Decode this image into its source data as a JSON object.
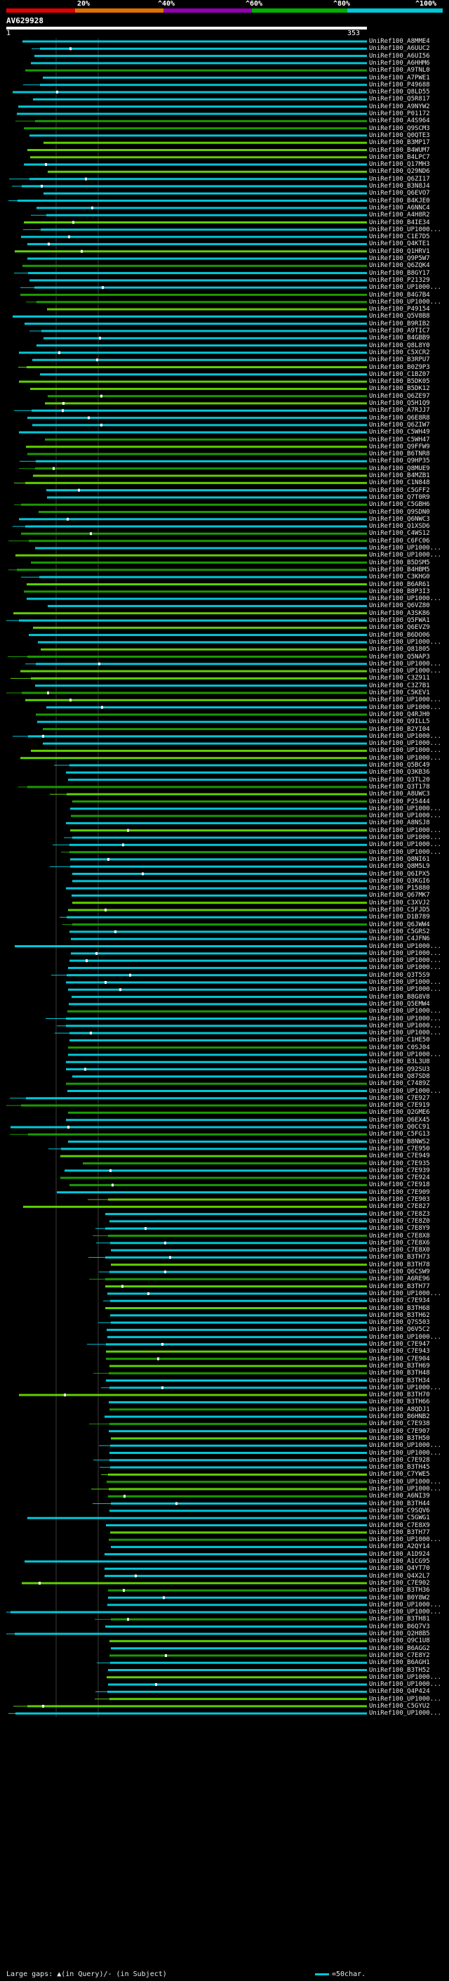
{
  "colors": {
    "background": "#000000",
    "query_line": "#ffffff",
    "hit_high": "#00c8d8",
    "hit_mid": "#1a9a00",
    "hit_mid_light": "#5fd000",
    "gap_marker": "#ffffff",
    "gridline": "#3a3a3a",
    "scale": [
      "#e00000",
      "#e07000",
      "#9000b0",
      "#00b000",
      "#00c8d8"
    ]
  },
  "scale": {
    "labels": [
      "20%",
      "^40%",
      "^60%",
      "^80%",
      "^100%"
    ]
  },
  "query": {
    "title": "AV629928",
    "start": "1",
    "end": "353"
  },
  "legend": {
    "gaps_text": "Large gaps: ▲(in Query)/- (in Subject)",
    "scale_text": "=50char."
  },
  "hits": [
    "UniRef100_A8MME4",
    "UniRef100_A6UUC2",
    "UniRef100_A6UI56",
    "UniRef100_A6HHM6",
    "UniRef100_A9TNL0",
    "UniRef100_A7PWE1",
    "UniRef100_P49688",
    "UniRef100_Q8LD55",
    "UniRef100_Q5R817",
    "UniRef100_A9NYW2",
    "UniRef100_P01172",
    "UniRef100_A4S964",
    "UniRef100_Q9SCM3",
    "UniRef100_Q0QTE3",
    "UniRef100_B3MP17",
    "UniRef100_B4WUM7",
    "UniRef100_B4LPC7",
    "UniRef100_Q17MH3",
    "UniRef100_Q29ND6",
    "UniRef100_Q6ZI17",
    "UniRef100_B3N8J4",
    "UniRef100_Q6EVO7",
    "UniRef100_B4KJE0",
    "UniRef100_A6NNC4",
    "UniRef100_A4H8R2",
    "UniRef100_B4IE34",
    "UniRef100_UP1000...",
    "UniRef100_C1E7D5",
    "UniRef100_Q4KTE1",
    "UniRef100_Q1HRV1",
    "UniRef100_Q9P5W7",
    "UniRef100_Q6ZQK4",
    "UniRef100_B8GY17",
    "UniRef100_P21329",
    "UniRef100_UP1000...",
    "UniRef100_B4G7B4",
    "UniRef100_UP1000...",
    "UniRef100_P49154",
    "UniRef100_Q5V8B8",
    "UniRef100_B9RIB2",
    "UniRef100_A9TIC7",
    "UniRef100_B4GBB9",
    "UniRef100_Q8L8Y0",
    "UniRef100_C5XCR2",
    "UniRef100_B3RPU7",
    "UniRef100_B0Z9P3",
    "UniRef100_C1BZ07",
    "UniRef100_B5DK05",
    "UniRef100_B5DK12",
    "UniRef100_Q6ZE97",
    "UniRef100_Q5H1Q9",
    "UniRef100_A7RJJ7",
    "UniRef100_Q6E8R8",
    "UniRef100_Q6ZIW7",
    "UniRef100_C5WH49",
    "UniRef100_C5WH47",
    "UniRef100_Q9FFW9",
    "UniRef100_B6TNR8",
    "UniRef100_Q9HP35",
    "UniRef100_Q8MUE9",
    "UniRef100_B4MZB1",
    "UniRef100_C1N848",
    "UniRef100_C5GFF2",
    "UniRef100_Q7T0R9",
    "UniRef100_C5GBH6",
    "UniRef100_Q9SDN0",
    "UniRef100_Q6NWC3",
    "UniRef100_Q1XSD6",
    "UniRef100_C4WS12",
    "UniRef100_C6FC06",
    "UniRef100_UP1000...",
    "UniRef100_UP1000...",
    "UniRef100_B5DSM5",
    "UniRef100_B4HBM5",
    "UniRef100_C3KHG0",
    "UniRef100_B6AR61",
    "UniRef100_B8P3I3",
    "UniRef100_UP1000...",
    "UniRef100_Q6VZ80",
    "UniRef100_A3SK86",
    "UniRef100_Q5FWA1",
    "UniRef100_Q6EVZ9",
    "UniRef100_B6DO06",
    "UniRef100_UP1000...",
    "UniRef100_Q81805",
    "UniRef100_Q5NAP3",
    "UniRef100_UP1000...",
    "UniRef100_UP1000...",
    "UniRef100_C3Z911",
    "UniRef100_C3Z7B1",
    "UniRef100_C5KEV1",
    "UniRef100_UP1000...",
    "UniRef100_UP1000...",
    "UniRef100_Q4RJH0",
    "UniRef100_Q9ILL5",
    "UniRef100_B2YI04",
    "UniRef100_UP1000...",
    "UniRef100_UP1000...",
    "UniRef100_UP1000...",
    "UniRef100_UP1000...",
    "UniRef100_Q5BC49",
    "UniRef100_Q3KB36",
    "UniRef100_Q3TL20",
    "UniRef100_Q3T178",
    "UniRef100_A8UWC3",
    "UniRef100_P25444",
    "UniRef100_UP1000...",
    "UniRef100_UP1000...",
    "UniRef100_A8NSJ8",
    "UniRef100_UP1000...",
    "UniRef100_UP1000...",
    "UniRef100_UP1000...",
    "UniRef100_UP1000...",
    "UniRef100_Q8NI61",
    "UniRef100_Q8M5L9",
    "UniRef100_Q6IPX5",
    "UniRef100_Q3KGI6",
    "UniRef100_P15880",
    "UniRef100_Q67MK7",
    "UniRef100_C3XVJ2",
    "UniRef100_C5FJD5",
    "UniRef100_D1B789",
    "UniRef100_Q6JWW4",
    "UniRef100_C5GRS2",
    "UniRef100_C4JFN6",
    "UniRef100_UP1000...",
    "UniRef100_UP1000...",
    "UniRef100_UP1000...",
    "UniRef100_UP1000...",
    "UniRef100_Q3T5S9",
    "UniRef100_UP1000...",
    "UniRef100_UP1000...",
    "UniRef100_B8G8V8",
    "UniRef100_Q5EMW4",
    "UniRef100_UP1000...",
    "UniRef100_UP1000...",
    "UniRef100_UP1000...",
    "UniRef100_UP1000...",
    "UniRef100_C1HE50",
    "UniRef100_C0SJ04",
    "UniRef100_UP1000...",
    "UniRef100_B3L3U8",
    "UniRef100_Q92SU3",
    "UniRef100_Q87SD8",
    "UniRef100_C7489Z",
    "UniRef100_UP1000...",
    "UniRef100_C7E927",
    "UniRef100_C7E919",
    "UniRef100_Q2GME6",
    "UniRef100_Q6EX45",
    "UniRef100_Q0CC91",
    "UniRef100_C5FG13",
    "UniRef100_B8NWS2",
    "UniRef100_C7E950",
    "UniRef100_C7E949",
    "UniRef100_C7E935",
    "UniRef100_C7E939",
    "UniRef100_C7E924",
    "UniRef100_C7E918",
    "UniRef100_C7E909",
    "UniRef100_C7E903",
    "UniRef100_C7E827",
    "UniRef100_C7E8Z3",
    "UniRef100_C7E8Z0",
    "UniRef100_C7E8Y9",
    "UniRef100_C7E8X8",
    "UniRef100_C7E8X6",
    "UniRef100_C7E8X0",
    "UniRef100_B3TH73",
    "UniRef100_B3TH78",
    "UniRef100_Q6CSW9",
    "UniRef100_A6RE96",
    "UniRef100_B3TH77",
    "UniRef100_UP1000...",
    "UniRef100_C7E934",
    "UniRef100_B3TH68",
    "UniRef100_B3TH62",
    "UniRef100_Q7S503",
    "UniRef100_Q6V5C2",
    "UniRef100_UP1000...",
    "UniRef100_C7E947",
    "UniRef100_C7E943",
    "UniRef100_C7E904",
    "UniRef100_B3TH69",
    "UniRef100_B3TH48",
    "UniRef100_B3TH34",
    "UniRef100_UP1000...",
    "UniRef100_B3TH70",
    "UniRef100_B3TH66",
    "UniRef100_A8QDJ1",
    "UniRef100_B6HNB2",
    "UniRef100_C7E938",
    "UniRef100_C7E907",
    "UniRef100_B3TH50",
    "UniRef100_UP1000...",
    "UniRef100_UP1000...",
    "UniRef100_C7E928",
    "UniRef100_B3TH45",
    "UniRef100_C7YWE5",
    "UniRef100_UP1000...",
    "UniRef100_UP1000...",
    "UniRef100_A6NI39",
    "UniRef100_B3TH44",
    "UniRef100_C9SQV6",
    "UniRef100_C5GWG1",
    "UniRef100_C7E8X9",
    "UniRef100_B3TH77",
    "UniRef100_UP1000...",
    "UniRef100_A2QY14",
    "UniRef100_A1D924",
    "UniRef100_A1CG95",
    "UniRef100_Q4YT70",
    "UniRef100_Q4X2L7",
    "UniRef100_C7E902",
    "UniRef100_B3TH36",
    "UniRef100_B0Y8W2",
    "UniRef100_UP1000...",
    "UniRef100_UP1000...",
    "UniRef100_B3TH81",
    "UniRef100_B6Q7V3",
    "UniRef100_Q2H8B5",
    "UniRef100_Q9C1U8",
    "UniRef100_B6AGG2",
    "UniRef100_C7E8Y2",
    "UniRef100_B6AGH1",
    "UniRef100_B3TH52",
    "UniRef100_UP1000...",
    "UniRef100_UP1000...",
    "UniRef100_Q4P424",
    "UniRef100_UP1000...",
    "UniRef100_C5GYU2",
    "UniRef100_UP1000..."
  ]
}
